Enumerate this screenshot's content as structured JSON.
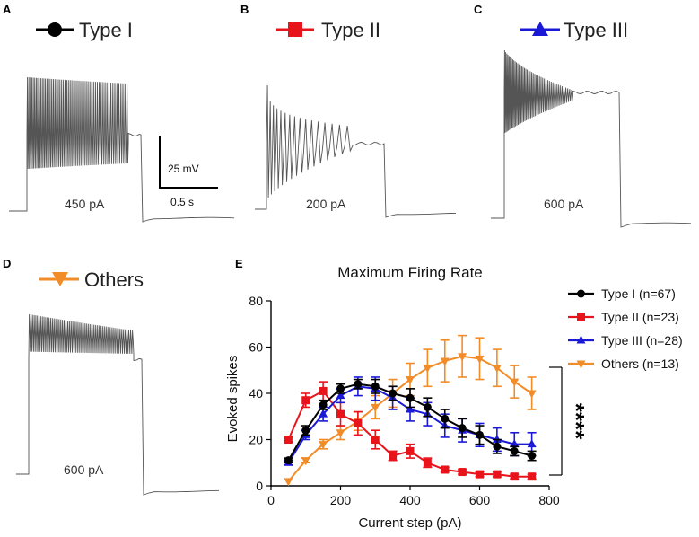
{
  "panels": [
    {
      "letter": "A",
      "type": "Type I",
      "current": "450 pA",
      "color": "#000000",
      "marker": "circle"
    },
    {
      "letter": "B",
      "type": "Type II",
      "current": "200 pA",
      "color": "#e8141c",
      "marker": "square"
    },
    {
      "letter": "C",
      "type": "Type III",
      "current": "600 pA",
      "color": "#1a1ad6",
      "marker": "triangle-up"
    },
    {
      "letter": "D",
      "type": "Others",
      "current": "600 pA",
      "color": "#f28c28",
      "marker": "triangle-down"
    }
  ],
  "scalebar": {
    "voltage": "25 mV",
    "time": "0.5 s"
  },
  "chart_panel_letter": "E",
  "significance": "****",
  "chart_data": {
    "type": "line",
    "title": "Maximum Firing Rate",
    "xlabel": "Current step (pA)",
    "ylabel": "Evoked spikes",
    "xlim": [
      0,
      800
    ],
    "ylim": [
      0,
      80
    ],
    "xticks": [
      0,
      200,
      400,
      600,
      800
    ],
    "yticks": [
      0,
      20,
      40,
      60,
      80
    ],
    "x": [
      50,
      100,
      150,
      200,
      250,
      300,
      350,
      400,
      450,
      500,
      550,
      600,
      650,
      700,
      750
    ],
    "series": [
      {
        "name": "Type I (n=67)",
        "color": "#000000",
        "marker": "circle",
        "values": [
          11,
          24,
          35,
          42,
          44,
          43,
          40,
          38,
          34,
          29,
          25,
          22,
          17,
          15,
          13
        ],
        "errors": [
          1,
          2,
          2,
          2,
          2,
          3,
          3,
          4,
          4,
          4,
          4,
          4,
          3,
          2,
          2
        ]
      },
      {
        "name": "Type II (n=23)",
        "color": "#e8141c",
        "marker": "square",
        "values": [
          20,
          37,
          41,
          31,
          27,
          20,
          13,
          15,
          10,
          7,
          6,
          5,
          5,
          4,
          4
        ],
        "errors": [
          1,
          3,
          4,
          5,
          5,
          4,
          2,
          3,
          2,
          1,
          1,
          1,
          1,
          1,
          1
        ]
      },
      {
        "name": "Type III (n=28)",
        "color": "#1a1ad6",
        "marker": "triangle-up",
        "values": [
          10,
          22,
          31,
          39,
          43,
          42,
          38,
          33,
          31,
          26,
          24,
          22,
          20,
          18,
          18
        ],
        "errors": [
          1,
          2,
          3,
          3,
          4,
          5,
          5,
          5,
          5,
          5,
          5,
          5,
          5,
          5,
          5
        ]
      },
      {
        "name": "Others (n=13)",
        "color": "#f28c28",
        "marker": "triangle-down",
        "values": [
          2,
          11,
          18,
          23,
          28,
          34,
          40,
          46,
          51,
          54,
          56,
          55,
          51,
          45,
          40
        ],
        "errors": [
          0,
          1,
          2,
          3,
          4,
          5,
          6,
          7,
          8,
          9,
          9,
          9,
          8,
          7,
          7
        ]
      }
    ]
  }
}
